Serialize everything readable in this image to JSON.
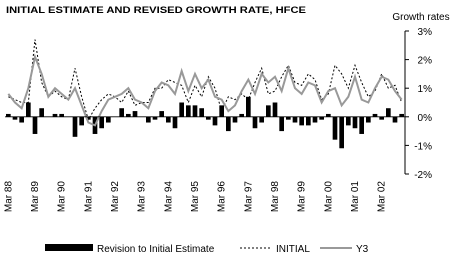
{
  "chart_data": {
    "type": "combo",
    "title": "INITIAL ESTIMATE AND REVISED GROWTH RATE, HFCE",
    "y_label": "Growth rates",
    "categories": [
      "Mar 88",
      null,
      null,
      null,
      "Mar 89",
      null,
      null,
      null,
      "Mar 90",
      null,
      null,
      null,
      "Mar 91",
      null,
      null,
      null,
      "Mar 92",
      null,
      null,
      null,
      "Mar 93",
      null,
      null,
      null,
      "Mar 94",
      null,
      null,
      null,
      "Mar 95",
      null,
      null,
      null,
      "Mar 96",
      null,
      null,
      null,
      "Mar 97",
      null,
      null,
      null,
      "Mar 98",
      null,
      null,
      null,
      "Mar 99",
      null,
      null,
      null,
      "Mar 00",
      null,
      null,
      null,
      "Mar 01",
      null,
      null,
      null,
      "Mar 02",
      null,
      null,
      null
    ],
    "series": [
      {
        "name": "Revision to Initial Estimate",
        "type": "bar",
        "color": "#000000",
        "values": [
          0.1,
          -0.1,
          -0.2,
          0.5,
          -0.6,
          0.3,
          0.0,
          0.1,
          0.1,
          0.0,
          -0.7,
          -0.3,
          -0.1,
          -0.6,
          -0.4,
          -0.2,
          0.0,
          0.3,
          0.1,
          0.2,
          0.0,
          -0.2,
          -0.1,
          0.2,
          -0.2,
          -0.4,
          0.5,
          0.4,
          0.4,
          0.3,
          -0.1,
          -0.3,
          0.4,
          -0.5,
          -0.2,
          0.1,
          0.7,
          -0.4,
          -0.2,
          0.4,
          0.5,
          -0.5,
          -0.1,
          -0.2,
          -0.3,
          -0.3,
          -0.2,
          -0.1,
          0.1,
          -0.8,
          -1.1,
          -0.3,
          -0.4,
          -0.6,
          -0.2,
          0.1,
          -0.1,
          0.3,
          -0.2,
          0.1
        ]
      },
      {
        "name": "INITIAL",
        "type": "line",
        "dash": "2,2",
        "width": 1,
        "color": "#000000",
        "values": [
          0.7,
          0.6,
          0.5,
          0.5,
          2.7,
          1.2,
          0.7,
          0.9,
          0.7,
          0.6,
          1.7,
          0.7,
          -0.1,
          0.3,
          0.6,
          0.8,
          0.7,
          0.5,
          0.9,
          0.4,
          0.5,
          0.5,
          1.0,
          1.0,
          1.3,
          1.2,
          1.1,
          0.5,
          1.1,
          0.7,
          1.4,
          1.0,
          0.2,
          0.7,
          0.6,
          0.8,
          0.6,
          1.2,
          1.7,
          0.8,
          0.9,
          1.4,
          1.8,
          1.2,
          1.1,
          1.5,
          1.3,
          0.6,
          0.8,
          1.8,
          1.5,
          1.0,
          1.8,
          1.2,
          0.7,
          0.9,
          1.5,
          1.0,
          1.1,
          0.5
        ]
      },
      {
        "name": "Y3",
        "type": "line",
        "width": 2,
        "color": "#999999",
        "values": [
          0.8,
          0.5,
          0.3,
          1.0,
          2.1,
          1.5,
          0.7,
          1.0,
          0.8,
          0.6,
          1.0,
          0.4,
          -0.2,
          -0.3,
          0.2,
          0.6,
          0.7,
          0.8,
          1.0,
          0.6,
          0.5,
          0.3,
          0.9,
          1.2,
          1.1,
          0.8,
          1.6,
          0.9,
          1.5,
          1.0,
          1.3,
          0.7,
          0.6,
          0.2,
          0.4,
          0.9,
          1.3,
          0.8,
          1.5,
          1.2,
          1.4,
          0.9,
          1.7,
          1.0,
          0.8,
          1.2,
          1.1,
          0.5,
          0.9,
          1.0,
          0.4,
          0.7,
          1.4,
          0.6,
          0.5,
          1.0,
          1.4,
          1.3,
          0.9,
          0.6
        ]
      }
    ],
    "ylim": [
      -2,
      3
    ],
    "yticks": [
      {
        "value": -2,
        "label": "-2%"
      },
      {
        "value": -1,
        "label": "-1%"
      },
      {
        "value": 0,
        "label": "0%"
      },
      {
        "value": 1,
        "label": "1%"
      },
      {
        "value": 2,
        "label": "2%"
      },
      {
        "value": 3,
        "label": "3%"
      }
    ]
  }
}
